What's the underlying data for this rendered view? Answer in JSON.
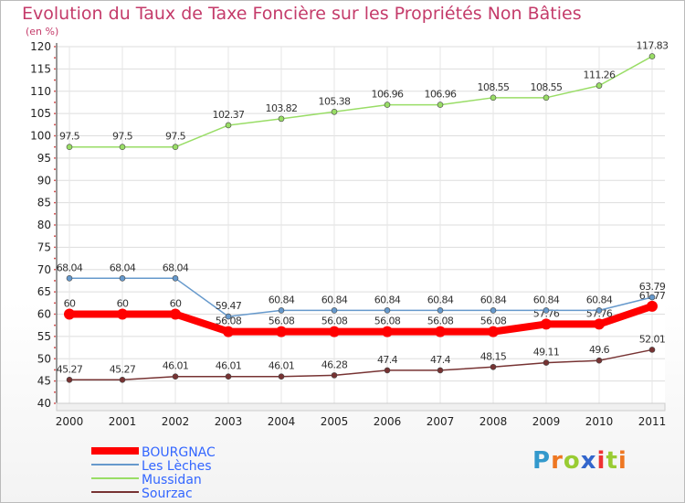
{
  "chart_data": {
    "type": "line",
    "title": "Evolution du Taux de Taxe Foncière sur les Propriétés Non Bâties",
    "unit": "(en %)",
    "x": [
      "2000",
      "2001",
      "2002",
      "2003",
      "2004",
      "2005",
      "2006",
      "2007",
      "2008",
      "2009",
      "2010",
      "2011"
    ],
    "ylim": [
      40,
      120
    ],
    "yticks": [
      40,
      45,
      50,
      55,
      60,
      65,
      70,
      75,
      80,
      85,
      90,
      95,
      100,
      105,
      110,
      115,
      120
    ],
    "series": [
      {
        "name": "BOURGNAC",
        "color": "#ff0000",
        "values": [
          60,
          60,
          60,
          56.08,
          56.08,
          56.08,
          56.08,
          56.08,
          56.08,
          57.76,
          57.76,
          61.77
        ],
        "labels": [
          "60",
          "60",
          "60",
          "56.08",
          "56.08",
          "56.08",
          "56.08",
          "56.08",
          "56.08",
          "57.76",
          "57.76",
          "61.77"
        ]
      },
      {
        "name": "Les Lèches",
        "color": "#6699cc",
        "values": [
          68.04,
          68.04,
          68.04,
          59.47,
          60.84,
          60.84,
          60.84,
          60.84,
          60.84,
          60.84,
          60.84,
          63.79
        ],
        "labels": [
          "68.04",
          "68.04",
          "68.04",
          "59.47",
          "60.84",
          "60.84",
          "60.84",
          "60.84",
          "60.84",
          "60.84",
          "60.84",
          "63.79"
        ]
      },
      {
        "name": "Mussidan",
        "color": "#99dd66",
        "values": [
          97.5,
          97.5,
          97.5,
          102.37,
          103.82,
          105.38,
          106.96,
          106.96,
          108.55,
          108.55,
          111.26,
          117.83
        ],
        "labels": [
          "97.5",
          "97.5",
          "97.5",
          "102.37",
          "103.82",
          "105.38",
          "106.96",
          "106.96",
          "108.55",
          "108.55",
          "111.26",
          "117.83"
        ]
      },
      {
        "name": "Sourzac",
        "color": "#773333",
        "values": [
          45.27,
          45.27,
          46.01,
          46.01,
          46.01,
          46.28,
          47.4,
          47.4,
          48.15,
          49.11,
          49.6,
          52.01
        ],
        "labels": [
          "45.27",
          "45.27",
          "46.01",
          "46.01",
          "46.01",
          "46.28",
          "47.4",
          "47.4",
          "48.15",
          "49.11",
          "49.6",
          "52.01"
        ]
      }
    ]
  },
  "logo": {
    "letters": [
      "P",
      "r",
      "o",
      "x",
      "i",
      "t",
      "i"
    ],
    "colors": [
      "#3399cc",
      "#ee7722",
      "#99cc33",
      "#3366cc",
      "#ee3333",
      "#99cc33",
      "#ee7722"
    ]
  }
}
